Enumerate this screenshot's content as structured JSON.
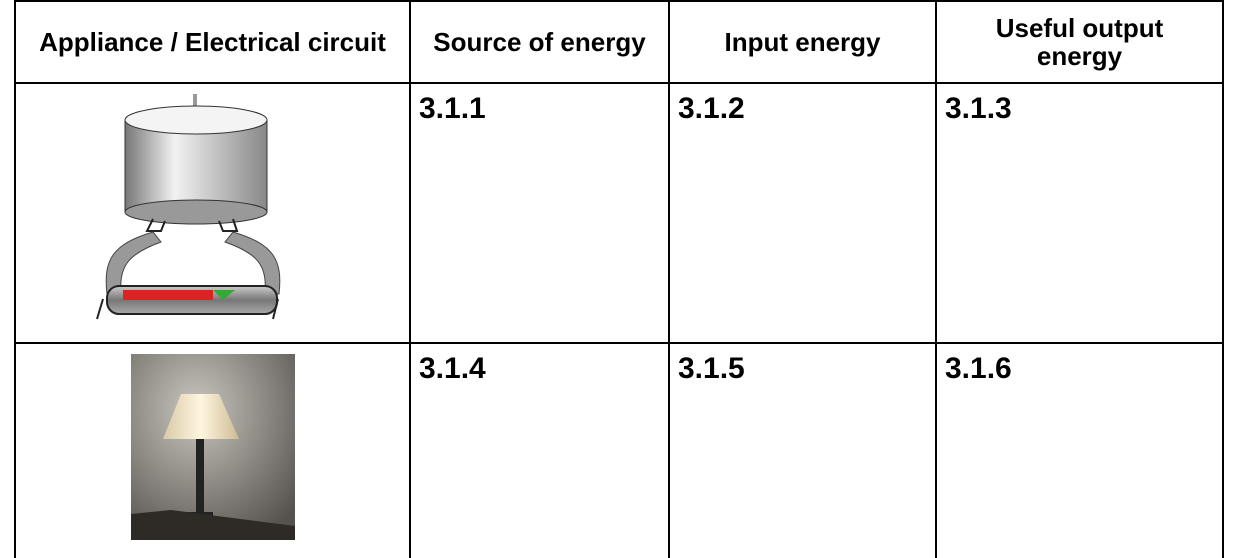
{
  "table": {
    "header": [
      "Appliance / Electrical circuit",
      "Source of energy",
      "Input energy",
      "Useful output energy"
    ],
    "rows": [
      [
        "3.1.1",
        "3.1.2",
        "3.1.3"
      ],
      [
        "3.1.4",
        "3.1.5",
        "3.1.6"
      ]
    ]
  }
}
